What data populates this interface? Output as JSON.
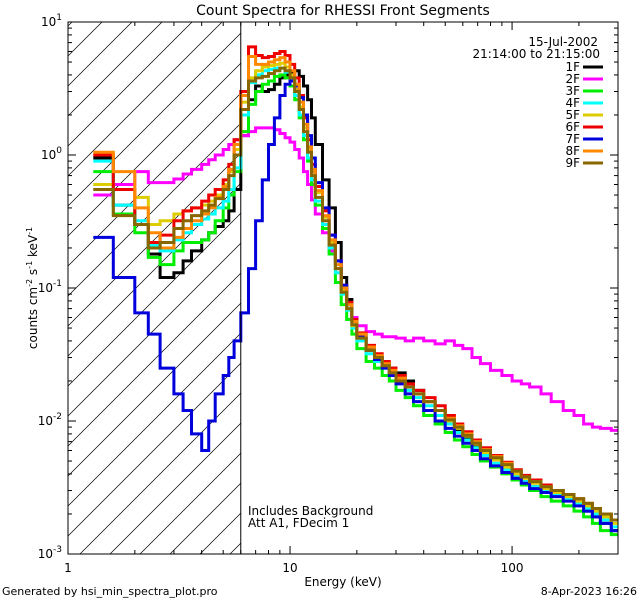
{
  "chart_data": {
    "type": "line",
    "title": "Count Spectra for RHESSI Front Segments",
    "xlabel": "Energy (keV)",
    "ylabel_main": "counts cm",
    "ylabel_sup1": "-2",
    "ylabel_mid": " s",
    "ylabel_sup2": "-1",
    "ylabel_end": " keV",
    "ylabel_sup3": "-1",
    "x_scale": "log",
    "y_scale": "log",
    "xlim": [
      1,
      300
    ],
    "ylim": [
      0.001,
      10
    ],
    "x_ticks": [
      {
        "value": 1,
        "label": "1"
      },
      {
        "value": 10,
        "label": "10"
      },
      {
        "value": 100,
        "label": "100"
      }
    ],
    "y_ticks": [
      {
        "value": 10,
        "base": "10",
        "exp": "1"
      },
      {
        "value": 1,
        "base": "10",
        "exp": "0"
      },
      {
        "value": 0.1,
        "base": "10",
        "exp": "-1"
      },
      {
        "value": 0.01,
        "base": "10",
        "exp": "-2"
      },
      {
        "value": 0.001,
        "base": "10",
        "exp": "-3"
      }
    ],
    "date": "15-Jul-2002",
    "time_range": "21:14:00 to 21:15:00",
    "annotation_line1": "Includes Background",
    "annotation_line2": "Att A1, FDecim 1",
    "attenuator_edge_keV": 6.0,
    "shaded_region": [
      1,
      6.0
    ],
    "footer_left": "Generated by hsi_min_spectra_plot.pro",
    "footer_right": "8-Apr-2023 16:26",
    "energy_edges": [
      1.3,
      1.6,
      2.0,
      2.3,
      2.6,
      3.0,
      3.3,
      3.6,
      4.0,
      4.3,
      4.6,
      5.0,
      5.3,
      5.6,
      6.0,
      6.5,
      7.0,
      7.5,
      8.0,
      8.5,
      9.0,
      9.5,
      10.0,
      10.5,
      11.0,
      11.5,
      12.0,
      12.5,
      13.0,
      14.0,
      15.0,
      16.0,
      17.0,
      18.0,
      19.0,
      20.0,
      22.0,
      24.0,
      26.0,
      28.0,
      30.0,
      33.0,
      36.0,
      40.0,
      45.0,
      50.0,
      55.0,
      60.0,
      66.0,
      72.0,
      80.0,
      90.0,
      100.0,
      110.0,
      120.0,
      135.0,
      150.0,
      170.0,
      190.0,
      210.0,
      230.0,
      250.0,
      280.0,
      300.0
    ],
    "series": [
      {
        "name": "1F",
        "color": "#000000",
        "values": [
          0.95,
          0.42,
          0.3,
          0.18,
          0.12,
          0.13,
          0.16,
          0.19,
          0.23,
          0.26,
          0.29,
          0.32,
          0.38,
          0.55,
          1.4,
          2.6,
          3.3,
          3.0,
          3.1,
          3.4,
          3.8,
          4.0,
          4.2,
          4.3,
          3.9,
          3.3,
          2.6,
          1.9,
          1.2,
          0.65,
          0.4,
          0.22,
          0.12,
          0.082,
          0.06,
          0.045,
          0.034,
          0.03,
          0.027,
          0.025,
          0.023,
          0.02,
          0.017,
          0.014,
          0.012,
          0.0098,
          0.0085,
          0.0075,
          0.0065,
          0.0055,
          0.0048,
          0.0042,
          0.0038,
          0.0035,
          0.0032,
          0.003,
          0.0028,
          0.0026,
          0.0024,
          0.0021,
          0.0019,
          0.0017,
          0.0015
        ]
      },
      {
        "name": "2F",
        "color": "#ff00ff",
        "values": [
          0.5,
          0.6,
          0.75,
          0.62,
          0.62,
          0.66,
          0.72,
          0.78,
          0.85,
          0.92,
          1.0,
          1.1,
          1.2,
          1.3,
          1.4,
          1.5,
          1.6,
          1.6,
          1.6,
          1.55,
          1.45,
          1.35,
          1.25,
          1.1,
          0.95,
          0.75,
          0.6,
          0.46,
          0.36,
          0.26,
          0.19,
          0.14,
          0.1,
          0.075,
          0.06,
          0.052,
          0.047,
          0.045,
          0.043,
          0.043,
          0.042,
          0.04,
          0.042,
          0.04,
          0.038,
          0.04,
          0.037,
          0.035,
          0.03,
          0.027,
          0.024,
          0.022,
          0.02,
          0.019,
          0.018,
          0.016,
          0.014,
          0.012,
          0.011,
          0.0095,
          0.009,
          0.0088,
          0.0085
        ]
      },
      {
        "name": "3F",
        "color": "#00ee00",
        "values": [
          0.75,
          0.36,
          0.26,
          0.17,
          0.15,
          0.19,
          0.22,
          0.22,
          0.23,
          0.26,
          0.32,
          0.4,
          0.5,
          0.75,
          1.5,
          2.4,
          3.0,
          3.4,
          3.6,
          3.9,
          4.0,
          3.8,
          3.3,
          2.6,
          1.9,
          1.3,
          0.9,
          0.6,
          0.42,
          0.28,
          0.18,
          0.11,
          0.075,
          0.058,
          0.045,
          0.035,
          0.028,
          0.025,
          0.022,
          0.02,
          0.017,
          0.015,
          0.013,
          0.011,
          0.0095,
          0.0082,
          0.0072,
          0.0064,
          0.0056,
          0.005,
          0.0045,
          0.004,
          0.0036,
          0.0033,
          0.003,
          0.0027,
          0.0025,
          0.0023,
          0.0021,
          0.0019,
          0.0017,
          0.0015,
          0.0014
        ]
      },
      {
        "name": "4F",
        "color": "#00ffff",
        "values": [
          0.9,
          0.42,
          0.32,
          0.21,
          0.19,
          0.23,
          0.26,
          0.3,
          0.33,
          0.36,
          0.4,
          0.45,
          0.55,
          0.8,
          2.0,
          3.5,
          4.0,
          4.3,
          4.4,
          4.5,
          4.5,
          4.2,
          3.6,
          2.8,
          2.0,
          1.4,
          0.95,
          0.65,
          0.45,
          0.3,
          0.2,
          0.13,
          0.09,
          0.068,
          0.05,
          0.04,
          0.032,
          0.028,
          0.025,
          0.022,
          0.02,
          0.017,
          0.015,
          0.013,
          0.011,
          0.0095,
          0.0082,
          0.0072,
          0.0063,
          0.0055,
          0.0048,
          0.0043,
          0.0039,
          0.0035,
          0.0032,
          0.003,
          0.0028,
          0.0026,
          0.0024,
          0.0022,
          0.002,
          0.0018,
          0.0016
        ]
      },
      {
        "name": "5F",
        "color": "#ddcc00",
        "values": [
          0.6,
          0.55,
          0.48,
          0.3,
          0.32,
          0.36,
          0.38,
          0.4,
          0.42,
          0.45,
          0.5,
          0.6,
          0.75,
          1.1,
          2.5,
          3.8,
          4.3,
          4.6,
          4.7,
          4.8,
          4.9,
          4.6,
          4.0,
          3.1,
          2.3,
          1.6,
          1.1,
          0.75,
          0.52,
          0.34,
          0.22,
          0.14,
          0.095,
          0.07,
          0.052,
          0.042,
          0.034,
          0.03,
          0.026,
          0.023,
          0.021,
          0.018,
          0.016,
          0.014,
          0.012,
          0.01,
          0.0088,
          0.0077,
          0.0067,
          0.0058,
          0.0051,
          0.0045,
          0.004,
          0.0037,
          0.0034,
          0.0031,
          0.0029,
          0.0027,
          0.0025,
          0.0023,
          0.0021,
          0.0019,
          0.0017
        ]
      },
      {
        "name": "6F",
        "color": "#ee0000",
        "values": [
          1.0,
          0.55,
          0.3,
          0.22,
          0.25,
          0.32,
          0.38,
          0.4,
          0.45,
          0.5,
          0.55,
          0.65,
          0.85,
          1.3,
          3.0,
          6.5,
          5.6,
          5.4,
          5.5,
          5.8,
          6.0,
          5.6,
          4.8,
          3.8,
          2.8,
          1.9,
          1.3,
          0.85,
          0.58,
          0.38,
          0.25,
          0.16,
          0.105,
          0.078,
          0.058,
          0.046,
          0.037,
          0.032,
          0.028,
          0.025,
          0.022,
          0.019,
          0.017,
          0.015,
          0.013,
          0.011,
          0.0095,
          0.0083,
          0.0072,
          0.0063,
          0.0055,
          0.0049,
          0.0043,
          0.0039,
          0.0036,
          0.0033,
          0.003,
          0.0028,
          0.0026,
          0.0024,
          0.0022,
          0.002,
          0.0018
        ]
      },
      {
        "name": "7F",
        "color": "#0000dd",
        "values": [
          0.24,
          0.12,
          0.065,
          0.045,
          0.025,
          0.016,
          0.012,
          0.008,
          0.006,
          0.01,
          0.016,
          0.022,
          0.03,
          0.04,
          0.065,
          0.14,
          0.32,
          0.65,
          1.2,
          1.9,
          2.8,
          3.4,
          3.6,
          3.3,
          2.7,
          2.0,
          1.4,
          0.95,
          0.62,
          0.4,
          0.25,
          0.16,
          0.105,
          0.075,
          0.056,
          0.043,
          0.034,
          0.029,
          0.025,
          0.022,
          0.019,
          0.016,
          0.014,
          0.012,
          0.01,
          0.0088,
          0.0077,
          0.0068,
          0.006,
          0.0052,
          0.0046,
          0.0041,
          0.0037,
          0.0034,
          0.0031,
          0.0029,
          0.0027,
          0.0025,
          0.0023,
          0.0021,
          0.0019,
          0.0017,
          0.0015
        ]
      },
      {
        "name": "8F",
        "color": "#ff8800",
        "values": [
          1.05,
          0.75,
          0.4,
          0.26,
          0.2,
          0.24,
          0.28,
          0.32,
          0.36,
          0.4,
          0.48,
          0.58,
          0.78,
          1.2,
          2.8,
          5.5,
          4.8,
          4.8,
          5.0,
          5.2,
          5.4,
          5.0,
          4.3,
          3.4,
          2.5,
          1.7,
          1.15,
          0.78,
          0.54,
          0.35,
          0.23,
          0.15,
          0.1,
          0.075,
          0.056,
          0.045,
          0.036,
          0.031,
          0.027,
          0.024,
          0.021,
          0.018,
          0.016,
          0.014,
          0.012,
          0.0105,
          0.0092,
          0.008,
          0.007,
          0.0061,
          0.0054,
          0.0048,
          0.0042,
          0.0038,
          0.0035,
          0.0032,
          0.003,
          0.0028,
          0.0026,
          0.0024,
          0.0022,
          0.002,
          0.0018
        ]
      },
      {
        "name": "9F",
        "color": "#886600",
        "values": [
          0.55,
          0.35,
          0.3,
          0.2,
          0.22,
          0.28,
          0.32,
          0.35,
          0.38,
          0.42,
          0.47,
          0.55,
          0.7,
          1.0,
          2.2,
          3.6,
          3.8,
          3.9,
          4.1,
          4.3,
          4.5,
          4.3,
          3.8,
          3.0,
          2.2,
          1.5,
          1.05,
          0.7,
          0.48,
          0.32,
          0.21,
          0.14,
          0.093,
          0.07,
          0.053,
          0.042,
          0.034,
          0.03,
          0.026,
          0.023,
          0.02,
          0.018,
          0.016,
          0.014,
          0.012,
          0.0102,
          0.009,
          0.0078,
          0.0068,
          0.006,
          0.0053,
          0.0047,
          0.0042,
          0.0038,
          0.0035,
          0.0032,
          0.003,
          0.0028,
          0.0026,
          0.0024,
          0.0022,
          0.002,
          0.0018
        ]
      }
    ]
  }
}
